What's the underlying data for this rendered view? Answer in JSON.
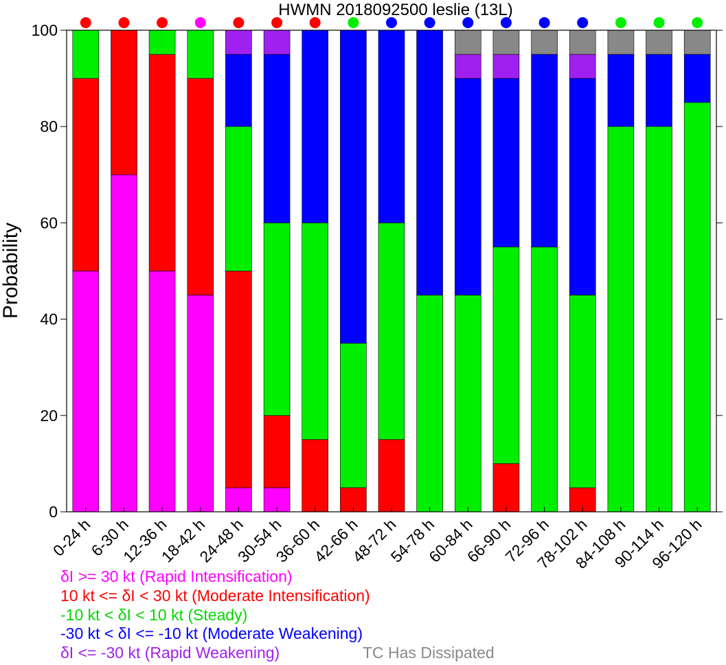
{
  "chart_data": {
    "type": "bar",
    "stacked": true,
    "title": "HWMN 2018092500 leslie (13L)",
    "xlabel": "",
    "ylabel": "Probability",
    "ylim": [
      0,
      100
    ],
    "yticks": [
      0,
      20,
      40,
      60,
      80,
      100
    ],
    "grid": false,
    "categories": [
      "0-24 h",
      "6-30 h",
      "12-36 h",
      "18-42 h",
      "24-48 h",
      "30-54 h",
      "36-60 h",
      "42-66 h",
      "48-72 h",
      "54-78 h",
      "60-84 h",
      "66-90 h",
      "72-96 h",
      "78-102 h",
      "84-108 h",
      "90-114 h",
      "96-120 h"
    ],
    "series": [
      {
        "name": "δI >= 30 kt (Rapid Intensification)",
        "color": "#ff00ff",
        "values": [
          50,
          70,
          50,
          45,
          5,
          5,
          0,
          0,
          0,
          0,
          0,
          0,
          0,
          0,
          0,
          0,
          0
        ]
      },
      {
        "name": "10 kt <= δI < 30 kt (Moderate Intensification)",
        "color": "#ff0000",
        "values": [
          40,
          30,
          45,
          45,
          45,
          15,
          15,
          5,
          15,
          0,
          0,
          10,
          0,
          5,
          0,
          0,
          0
        ]
      },
      {
        "name": "-10 kt < δI < 10 kt (Steady)",
        "color": "#00ee00",
        "values": [
          10,
          0,
          5,
          10,
          30,
          40,
          45,
          30,
          45,
          45,
          45,
          45,
          55,
          40,
          80,
          80,
          85
        ]
      },
      {
        "name": "-30 kt < δI <= -10 kt (Moderate Weakening)",
        "color": "#0000ff",
        "values": [
          0,
          0,
          0,
          0,
          15,
          35,
          40,
          65,
          40,
          55,
          45,
          35,
          40,
          45,
          15,
          15,
          10
        ]
      },
      {
        "name": "δI <= -30 kt (Rapid Weakening)",
        "color": "#a020f0",
        "values": [
          0,
          0,
          0,
          0,
          5,
          5,
          0,
          0,
          0,
          0,
          5,
          5,
          0,
          5,
          0,
          0,
          0
        ]
      },
      {
        "name": "TC Has Dissipated",
        "color": "#888888",
        "values": [
          0,
          0,
          0,
          0,
          0,
          0,
          0,
          0,
          0,
          0,
          5,
          5,
          5,
          5,
          5,
          5,
          5
        ]
      }
    ],
    "dominant_markers": [
      "#ff0000",
      "#ff0000",
      "#ff0000",
      "#ff00ff",
      "#ff0000",
      "#ff0000",
      "#ff0000",
      "#00ee00",
      "#0000ff",
      "#0000ff",
      "#0000ff",
      "#0000ff",
      "#0000ff",
      "#0000ff",
      "#00ee00",
      "#00ee00",
      "#00ee00"
    ]
  }
}
